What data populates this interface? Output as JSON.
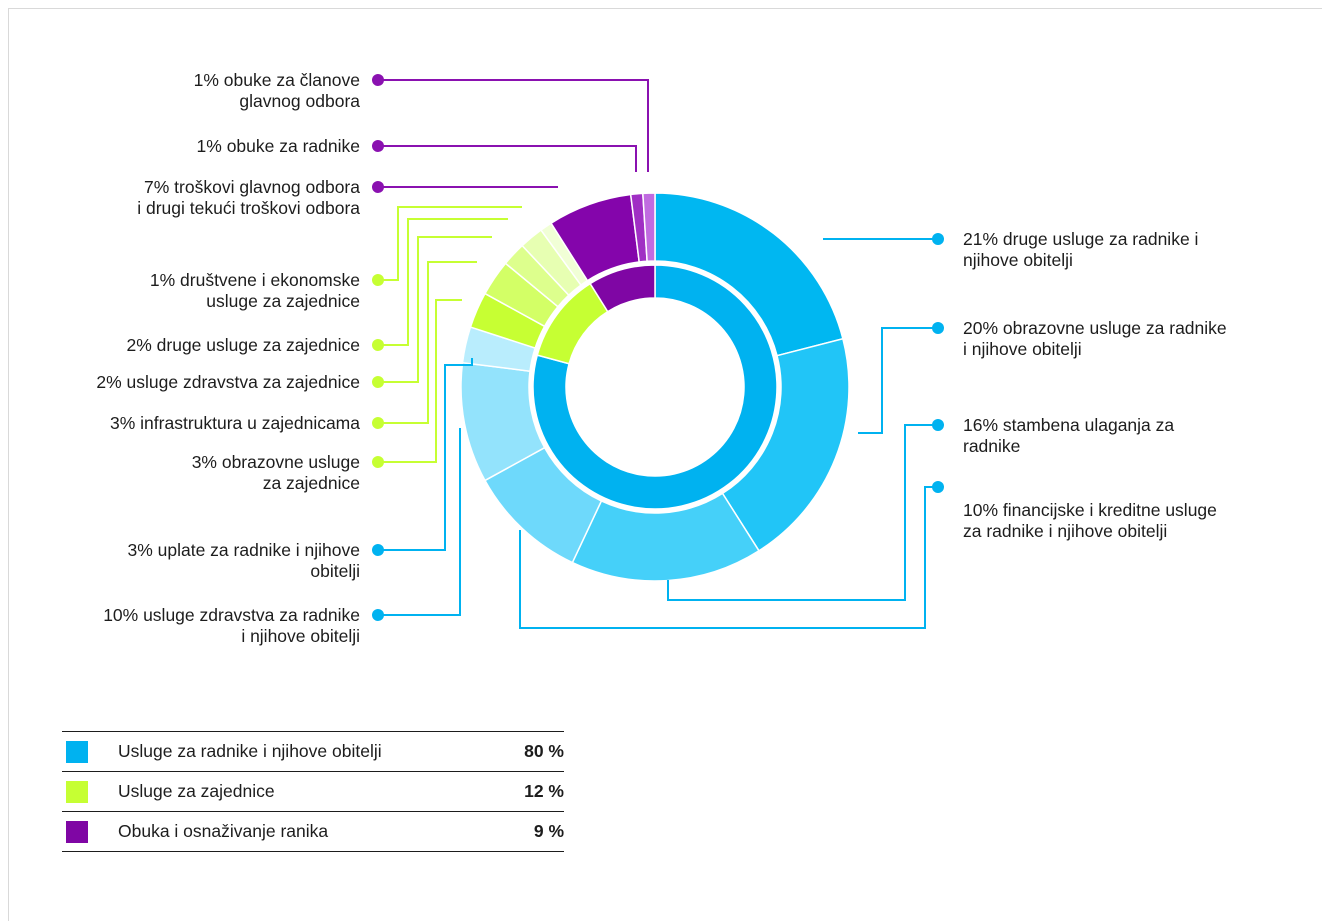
{
  "chart_data": {
    "type": "donut",
    "groups": [
      {
        "name": "Usluge za radnike i njihove obitelji",
        "value": 80,
        "value_label": "80 %",
        "color": "#00b2f0"
      },
      {
        "name": "Usluge za zajednice",
        "value": 12,
        "value_label": "12 %",
        "color": "#c6ff33"
      },
      {
        "name": "Obuka i osnaživanje ranika",
        "value": 9,
        "value_label": "9 %",
        "color": "#7f06a4"
      }
    ],
    "slices": [
      {
        "label": "21% druge usluge za radnike i\nnjihove obitelji",
        "value": 21,
        "group": 0,
        "color": "#00b7f1"
      },
      {
        "label": "20% obrazovne usluge za radnike\ni njihove obitelji",
        "value": 20,
        "group": 0,
        "color": "#21c5f7"
      },
      {
        "label": "16% stambena ulaganja za\nradnike",
        "value": 16,
        "group": 0,
        "color": "#45d0f9"
      },
      {
        "label": "10% financijske i kreditne usluge\nza radnike i njihove obitelji",
        "value": 10,
        "group": 0,
        "color": "#6ed9fb"
      },
      {
        "label": "10% usluge zdravstva za radnike\ni njihove obitelji",
        "value": 10,
        "group": 0,
        "color": "#93e3fc"
      },
      {
        "label": "3% uplate za radnike i njihove\nobitelji",
        "value": 3,
        "group": 0,
        "color": "#b9edfd"
      },
      {
        "label": "3% obrazovne usluge\nza zajednice",
        "value": 3,
        "group": 1,
        "color": "#c7ff33"
      },
      {
        "label": "3% infrastruktura u zajednicama",
        "value": 3,
        "group": 1,
        "color": "#d3ff66"
      },
      {
        "label": "2% usluge zdravstva za zajednice",
        "value": 2,
        "group": 1,
        "color": "#ddff8d"
      },
      {
        "label": "2% druge usluge za zajednice",
        "value": 2,
        "group": 1,
        "color": "#e7ffb2"
      },
      {
        "label": "1% društvene i ekonomske\nusluge za zajednice",
        "value": 1,
        "group": 1,
        "color": "#f1ffd6"
      },
      {
        "label": "7% troškovi glavnog odbora\ni drugi tekući troškovi odbora",
        "value": 7,
        "group": 2,
        "color": "#8405ab"
      },
      {
        "label": "1% obuke za radnike",
        "value": 1,
        "group": 2,
        "color": "#a02fc4"
      },
      {
        "label": "1% obuke za članove\nglavnog odbora",
        "value": 1,
        "group": 2,
        "color": "#c06be0"
      }
    ]
  },
  "colors": {
    "workers": "#00b2f0",
    "community": "#c6ff33",
    "training": "#7f06a4"
  }
}
